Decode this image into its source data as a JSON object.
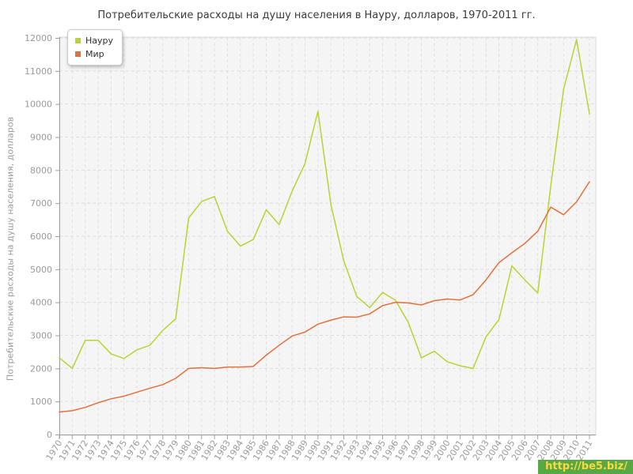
{
  "title": "Потребительские расходы на душу населения в Науру, долларов, 1970-2011 гг.",
  "y_axis_title": "Потребительские расходы на душу населения, долларов",
  "watermark": {
    "text": "http://be5.biz/",
    "bg_color": "#58a846",
    "text_color": "#ffd83d"
  },
  "chart_data": {
    "type": "line",
    "x": [
      1970,
      1971,
      1972,
      1973,
      1974,
      1975,
      1976,
      1977,
      1978,
      1979,
      1980,
      1981,
      1982,
      1983,
      1984,
      1985,
      1986,
      1987,
      1988,
      1989,
      1990,
      1991,
      1992,
      1993,
      1994,
      1995,
      1996,
      1997,
      1998,
      1999,
      2000,
      2001,
      2002,
      2003,
      2004,
      2005,
      2006,
      2007,
      2008,
      2009,
      2010,
      2011
    ],
    "series": [
      {
        "name": "Науру",
        "color": "#b7d433",
        "values": [
          2320,
          2000,
          2850,
          2850,
          2440,
          2300,
          2560,
          2700,
          3150,
          3500,
          6550,
          7050,
          7200,
          6150,
          5700,
          5900,
          6800,
          6350,
          7360,
          8200,
          9780,
          6960,
          5250,
          4180,
          3840,
          4300,
          4060,
          3380,
          2320,
          2520,
          2200,
          2080,
          2000,
          2960,
          3480,
          5100,
          4680,
          4280,
          7500,
          10450,
          11950,
          9700
        ]
      },
      {
        "name": "Мир",
        "color": "#e2703a",
        "values": [
          680,
          720,
          820,
          960,
          1080,
          1160,
          1280,
          1400,
          1510,
          1700,
          2000,
          2020,
          2000,
          2040,
          2040,
          2060,
          2400,
          2700,
          2980,
          3100,
          3340,
          3460,
          3560,
          3550,
          3650,
          3900,
          4000,
          3980,
          3920,
          4050,
          4100,
          4070,
          4230,
          4680,
          5200,
          5500,
          5780,
          6150,
          6880,
          6650,
          7040,
          7650
        ]
      }
    ],
    "ylim": [
      0,
      12000
    ],
    "ytick_step": 1000,
    "grid": true,
    "legend_position": "top-left"
  }
}
